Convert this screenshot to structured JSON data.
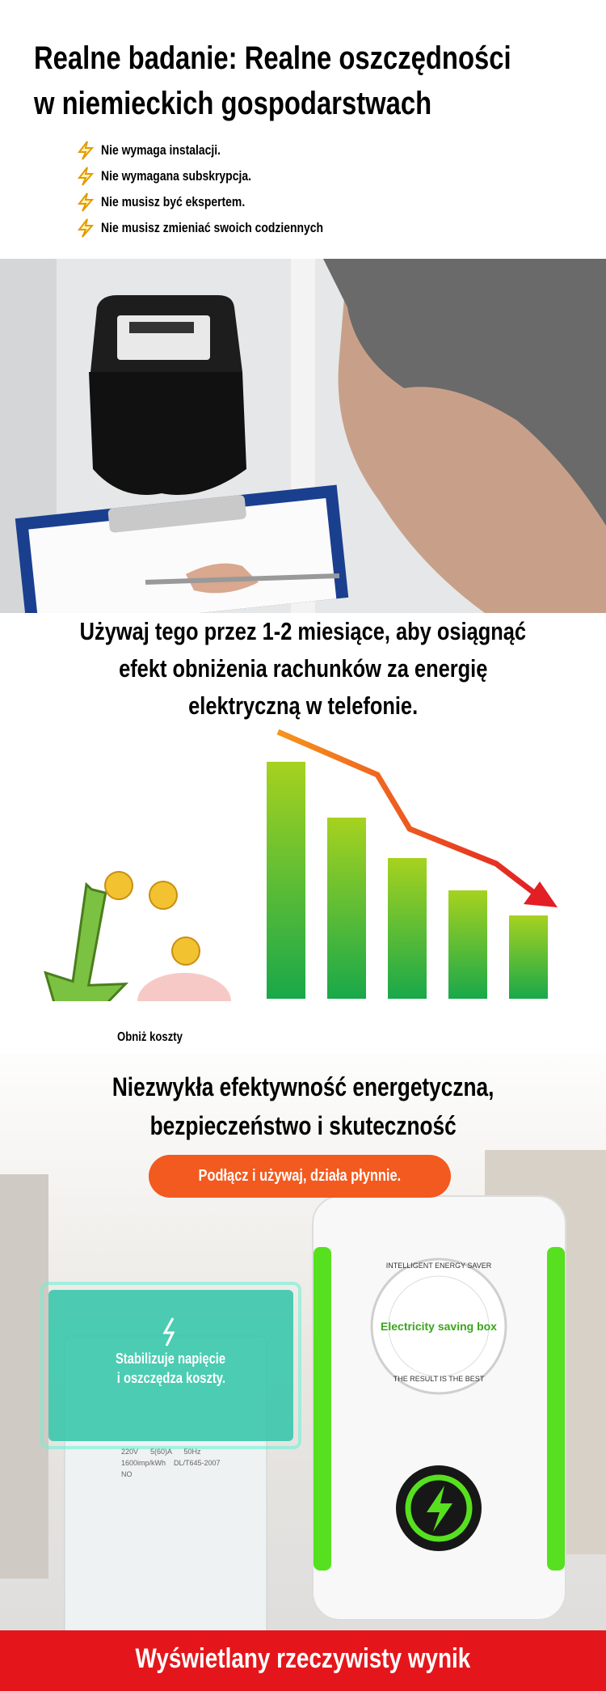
{
  "header": {
    "title_lines": [
      "Realne badanie: Realne oszczędności",
      "w niemieckich gospodarstwach"
    ],
    "bullets": [
      "Nie wymaga instalacji.",
      "Nie wymagana subskrypcja.",
      "Nie musisz być ekspertem.",
      "Nie musisz zmieniać swoich codziennych"
    ]
  },
  "usage": {
    "text_lines": [
      "Używaj tego przez 1-2 miesiące, aby osiągnąć",
      "efekt obniżenia rachunków za energię",
      "elektryczną w telefonie."
    ],
    "illustration_label": "Obniż koszty"
  },
  "product": {
    "title_lines": [
      "Niezwykła efektywność energetyczna,",
      "bezpieczeństwo i skuteczność"
    ],
    "pill": "Podłącz i używaj, działa płynnie.",
    "overlay_lines": [
      "Stabilizuje napięcie",
      "i oszczędza koszty."
    ],
    "meter_lines": [
      "220V      5(60)A      50Hz",
      "1600imp/kWh    DL/T645-2007",
      "NO"
    ],
    "badge_top": "INTELLIGENT ENERGY SAVER",
    "badge_center": "Electricity saving box",
    "badge_bottom": "THE RESULT IS THE BEST"
  },
  "footer": {
    "banner": "Wyświetlany rzeczywisty wynik"
  }
}
